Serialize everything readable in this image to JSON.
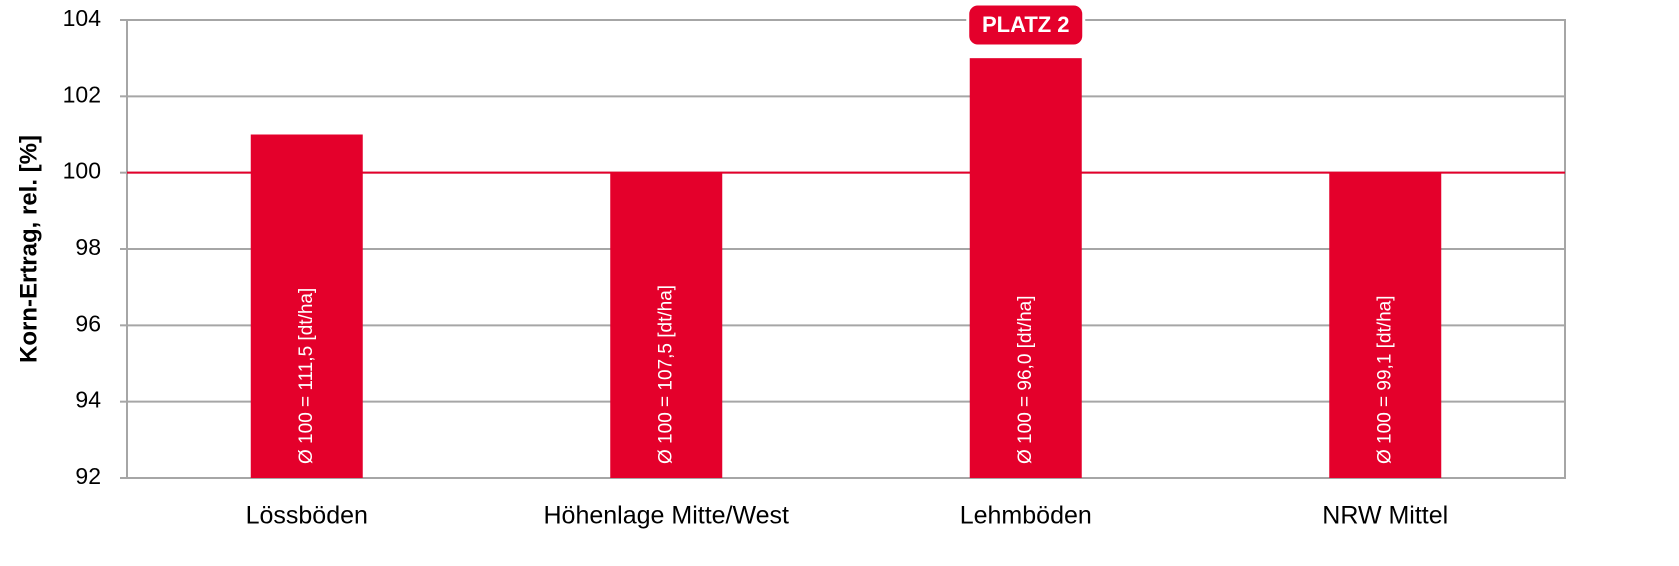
{
  "chart_data": {
    "type": "bar",
    "ylabel": "Korn-Ertrag, rel. [%]",
    "categories": [
      "Lössböden",
      "Höhenlage Mitte/West",
      "Lehmböden",
      "NRW Mittel"
    ],
    "values": [
      101,
      100,
      103,
      100
    ],
    "bar_labels": [
      "Ø 100 = 111,5 [dt/ha]",
      "Ø 100 = 107,5 [dt/ha]",
      "Ø 100 = 96,0 [dt/ha]",
      "Ø 100 = 99,1 [dt/ha]"
    ],
    "color": "#e4002b",
    "ylim": [
      92,
      104
    ],
    "yticks": [
      92,
      94,
      96,
      98,
      100,
      102,
      104
    ],
    "grid": true,
    "reference_line": {
      "value": 100,
      "color": "#e4002b"
    },
    "annotations": [
      {
        "category": "Lehmböden",
        "text": "PLATZ 2"
      }
    ]
  }
}
